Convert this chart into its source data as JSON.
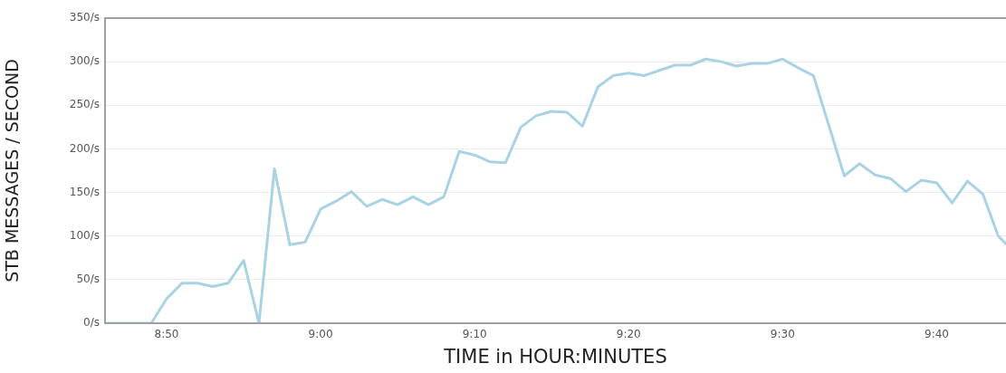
{
  "chart_data": {
    "type": "line",
    "xlabel": "TIME in HOUR:MINUTES",
    "ylabel": "STB MESSAGES / SECOND",
    "x": [
      8.7667,
      8.7833,
      8.8,
      8.8167,
      8.8333,
      8.85,
      8.8667,
      8.8833,
      8.9,
      8.9167,
      8.9333,
      8.95,
      8.9667,
      8.9833,
      9.0,
      9.0167,
      9.0333,
      9.05,
      9.0667,
      9.0833,
      9.1,
      9.1167,
      9.1333,
      9.15,
      9.1667,
      9.1833,
      9.2,
      9.2167,
      9.2333,
      9.25,
      9.2667,
      9.2833,
      9.3,
      9.3167,
      9.3333,
      9.35,
      9.3667,
      9.3833,
      9.4,
      9.4167,
      9.4333,
      9.45,
      9.4667,
      9.4833,
      9.5,
      9.5167,
      9.5333,
      9.55,
      9.5667,
      9.5833,
      9.6,
      9.6167,
      9.6333,
      9.65,
      9.6667,
      9.6833,
      9.7,
      9.7167,
      9.7333,
      9.7417
    ],
    "series": [
      {
        "color": "#a9d3e4",
        "values": [
          0,
          0,
          0,
          0,
          28,
          46,
          46,
          42,
          46,
          72,
          0,
          177,
          90,
          93,
          131,
          140,
          151,
          134,
          142,
          136,
          145,
          136,
          145,
          197,
          193,
          185,
          184,
          225,
          238,
          243,
          242,
          226,
          271,
          284,
          287,
          284,
          290,
          296,
          296,
          303,
          300,
          295,
          298,
          298,
          303,
          293,
          284,
          227,
          169,
          183,
          170,
          166,
          151,
          164,
          161,
          138,
          163,
          148,
          100,
          91
        ]
      }
    ],
    "xlim": [
      8.7667,
      9.7417
    ],
    "xticks": [
      {
        "value": 8.8333,
        "label": "8:50"
      },
      {
        "value": 9.0,
        "label": "9:00"
      },
      {
        "value": 9.1667,
        "label": "9:10"
      },
      {
        "value": 9.3333,
        "label": "9:20"
      },
      {
        "value": 9.5,
        "label": "9:30"
      },
      {
        "value": 9.6667,
        "label": "9:40"
      }
    ],
    "ylim": [
      0,
      350
    ],
    "yticks": [
      {
        "value": 0,
        "label": "0/s"
      },
      {
        "value": 50,
        "label": "50/s"
      },
      {
        "value": 100,
        "label": "100/s"
      },
      {
        "value": 150,
        "label": "150/s"
      },
      {
        "value": 200,
        "label": "200/s"
      },
      {
        "value": 250,
        "label": "250/s"
      },
      {
        "value": 300,
        "label": "300/s"
      },
      {
        "value": 350,
        "label": "350/s"
      }
    ],
    "grid": "y",
    "legend": false,
    "marker": "none",
    "line_style": "solid"
  }
}
